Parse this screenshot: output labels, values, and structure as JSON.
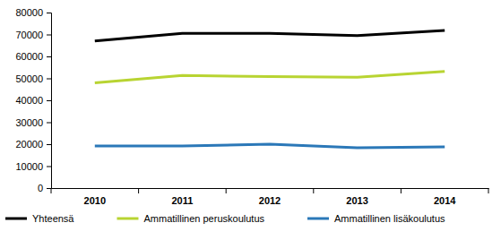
{
  "chart_data": {
    "type": "line",
    "categories": [
      "2010",
      "2011",
      "2012",
      "2013",
      "2014"
    ],
    "series": [
      {
        "name": "Yhteensä",
        "color": "#000000",
        "values": [
          67000,
          70500,
          70500,
          69500,
          71800
        ]
      },
      {
        "name": "Ammatillinen peruskoulutus",
        "color": "#b8d432",
        "values": [
          48000,
          51300,
          50800,
          50500,
          53200
        ]
      },
      {
        "name": "Ammatillinen lisäkoulutus",
        "color": "#2b78b8",
        "values": [
          19200,
          19200,
          20000,
          18400,
          18800
        ]
      }
    ],
    "ylim": [
      0,
      80000
    ],
    "yticks": [
      0,
      10000,
      20000,
      30000,
      40000,
      50000,
      60000,
      70000,
      80000
    ],
    "grid": false,
    "legend": "bottom"
  }
}
